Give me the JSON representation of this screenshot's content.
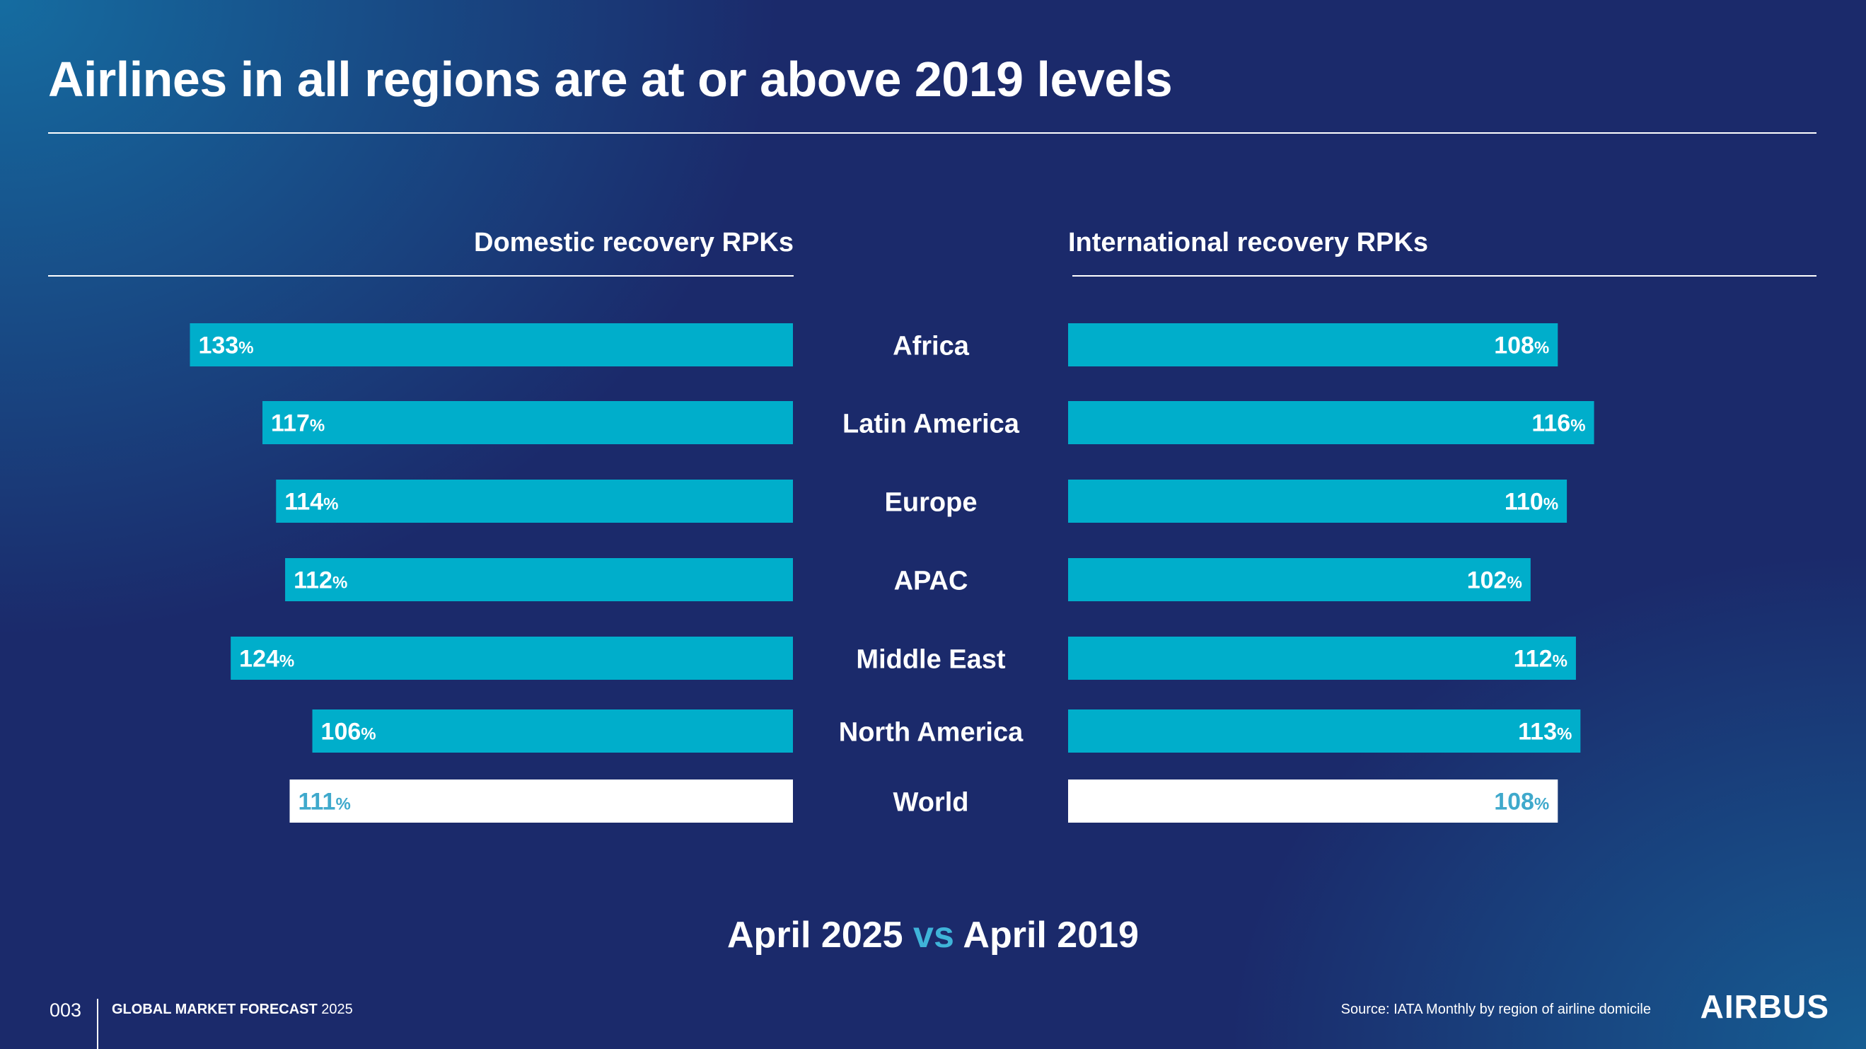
{
  "title": "Airlines in all regions are at or above 2019 levels",
  "chart_data": {
    "type": "bar",
    "categories": [
      "Africa",
      "Latin America",
      "Europe",
      "APAC",
      "Middle East",
      "North America",
      "World"
    ],
    "series": [
      {
        "name": "Domestic recovery RPKs",
        "values": [
          133,
          117,
          114,
          112,
          124,
          106,
          111
        ]
      },
      {
        "name": "International recovery RPKs",
        "values": [
          108,
          116,
          110,
          102,
          112,
          113,
          108
        ]
      }
    ],
    "unit": "%",
    "highlight_category": "World",
    "colors": {
      "bar": "#00aecb",
      "highlight_bar": "#ffffff",
      "highlight_text": "#3fa9cc",
      "text": "#ffffff"
    }
  },
  "subtitle": {
    "left": "April 2025",
    "vs": "vs",
    "right": "April 2019"
  },
  "footer": {
    "page_number": "003",
    "forecast_label": "GLOBAL MARKET FORECAST",
    "forecast_year": "2025",
    "source": "Source: IATA Monthly by region of airline domicile"
  },
  "logo_text": "AIRBUS"
}
